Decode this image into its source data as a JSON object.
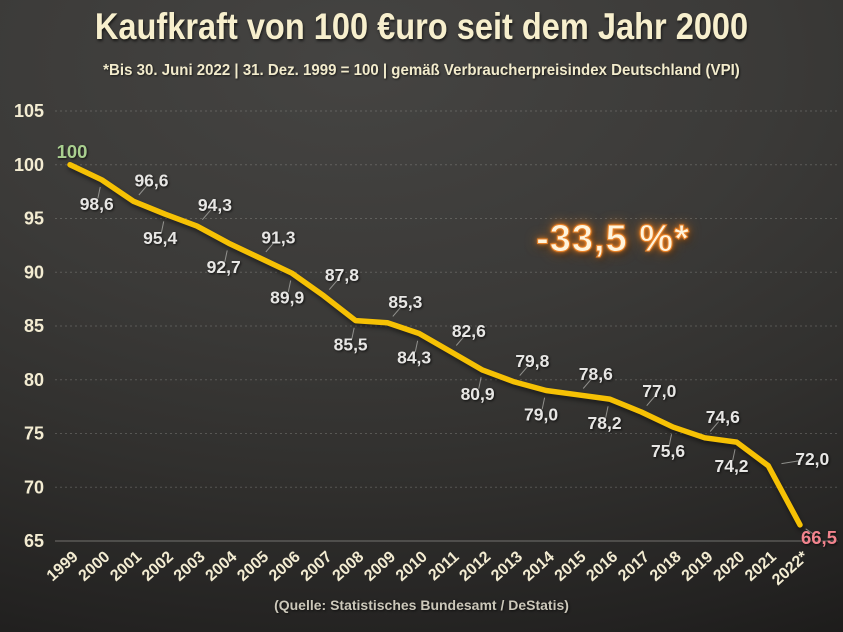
{
  "title": "Kaufkraft von 100 €uro seit dem Jahr 2000",
  "subtitle": "*Bis 30. Juni 2022 | 31. Dez. 1999 = 100 | gemäß Verbraucherpreisindex Deutschland (VPI)",
  "source": "(Quelle: Statistisches Bundesamt / DeStatis)",
  "chart_data": {
    "type": "line",
    "title": "Kaufkraft von 100 €uro seit dem Jahr 2000",
    "annotation": "-33,5 %*",
    "categories": [
      "1999",
      "2000",
      "2001",
      "2002",
      "2003",
      "2004",
      "2005",
      "2006",
      "2007",
      "2008",
      "2009",
      "2010",
      "2011",
      "2012",
      "2013",
      "2014",
      "2015",
      "2016",
      "2017",
      "2018",
      "2019",
      "2020",
      "2021",
      "2022*"
    ],
    "values": [
      100,
      98.6,
      96.6,
      95.4,
      94.3,
      92.7,
      91.3,
      89.9,
      87.8,
      85.5,
      85.3,
      84.3,
      82.6,
      80.9,
      79.8,
      79.0,
      78.6,
      78.2,
      77.0,
      75.6,
      74.6,
      74.2,
      72.0,
      66.5
    ],
    "labels": [
      "100",
      "98,6",
      "96,6",
      "95,4",
      "94,3",
      "92,7",
      "91,3",
      "89,9",
      "87,8",
      "85,5",
      "85,3",
      "84,3",
      "82,6",
      "80,9",
      "79,8",
      "79,0",
      "78,6",
      "78,2",
      "77,0",
      "75,6",
      "74,6",
      "74,2",
      "72,0",
      "66,5"
    ],
    "y_ticks": [
      105,
      100,
      95,
      90,
      85,
      80,
      75,
      70,
      65
    ],
    "ylim": [
      65,
      105
    ],
    "xlabel": "",
    "ylabel": "",
    "grid": "dashed-horizontal",
    "legend": "none",
    "colors": {
      "line": "#F6C104",
      "data_label": "#E7E6E4",
      "first_label": "#A9CF8F",
      "last_label": "#F2838D",
      "axis_tick": "#F3ECD2",
      "gridline": "#AEAEA9",
      "leader_line": "#A8A8A4",
      "annotation_glow": "#E8791B",
      "title_text": "#F7EFCD"
    }
  }
}
